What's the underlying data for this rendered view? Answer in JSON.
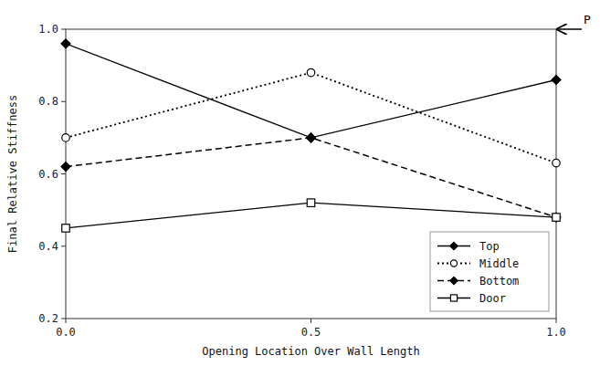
{
  "chart_data": {
    "type": "line",
    "x_label": "Opening Location Over Wall Length",
    "y_label": "Final Relative Stiffness",
    "x": [
      0.0,
      0.5,
      1.0
    ],
    "series": [
      {
        "name": "Top",
        "color": "#000000",
        "marker": "diamond",
        "line_style": "solid",
        "values": [
          0.96,
          0.7,
          0.86
        ]
      },
      {
        "name": "Middle",
        "color": "#000000",
        "marker": "circle-open",
        "line_style": "dotted",
        "values": [
          0.7,
          0.88,
          0.63
        ]
      },
      {
        "name": "Bottom",
        "color": "#000000",
        "marker": "diamond",
        "line_style": "dashed",
        "values": [
          0.62,
          0.7,
          0.48
        ]
      },
      {
        "name": "Door",
        "color": "#000000",
        "marker": "square-open",
        "line_style": "solid",
        "values": [
          0.45,
          0.52,
          0.48
        ]
      }
    ],
    "xlim": [
      0.0,
      1.0
    ],
    "ylim": [
      0.2,
      1.0
    ],
    "xticks": [
      {
        "value": 0,
        "label": "0.0"
      },
      0.5,
      {
        "value": 1,
        "label": "1.0"
      }
    ],
    "yticks": [
      0.2,
      0.4,
      0.6,
      0.8,
      {
        "value": 1,
        "label": "1.0"
      }
    ],
    "annotations": [
      {
        "text": "P",
        "x": 1.0,
        "y": 1.0
      }
    ],
    "legend": "lower right",
    "grid": false
  }
}
